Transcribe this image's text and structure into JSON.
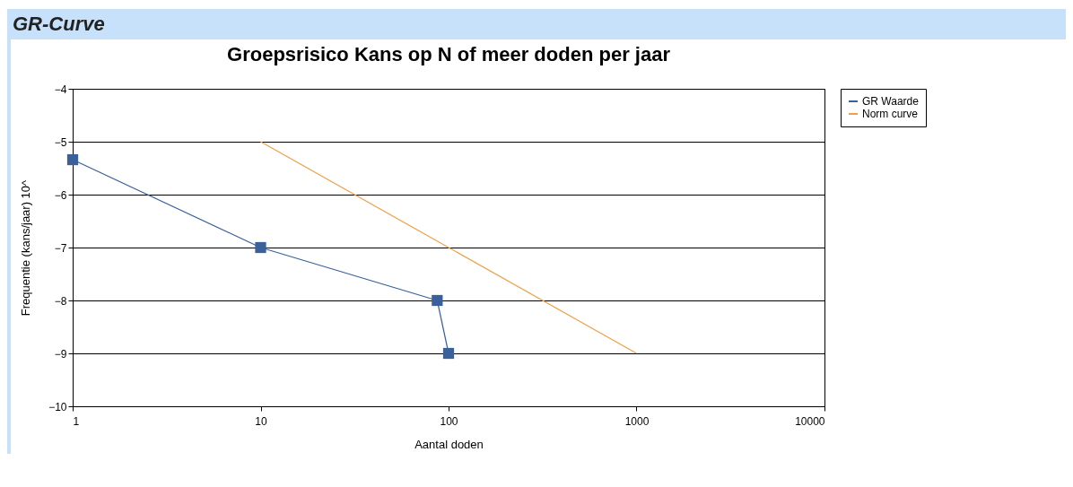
{
  "chart_data": {
    "type": "line",
    "title": "Groepsrisico Kans op N of meer doden per jaar",
    "annotations": [
      "GR-Curve"
    ],
    "xlabel": "Aantal doden",
    "ylabel": "Frequentie (kans/jaar) 10^",
    "log": "x",
    "xlim": [
      1,
      10000
    ],
    "xticks": [
      1,
      10,
      100,
      1000,
      10000
    ],
    "ylim": [
      -10,
      -4
    ],
    "yticks": [
      -10,
      -9,
      -8,
      -7,
      -6,
      -5,
      -4
    ],
    "grid": "y",
    "legend": "right",
    "series": [
      {
        "name": "GR Waarde",
        "color": "#3a6199",
        "marker": "square",
        "x": [
          1,
          10,
          87,
          100
        ],
        "values": [
          -5.34,
          -7,
          -8,
          -9
        ]
      },
      {
        "name": "Norm curve",
        "color": "#f0a048",
        "marker": "none",
        "x": [
          10,
          1000
        ],
        "values": [
          -5,
          -9
        ]
      }
    ]
  }
}
